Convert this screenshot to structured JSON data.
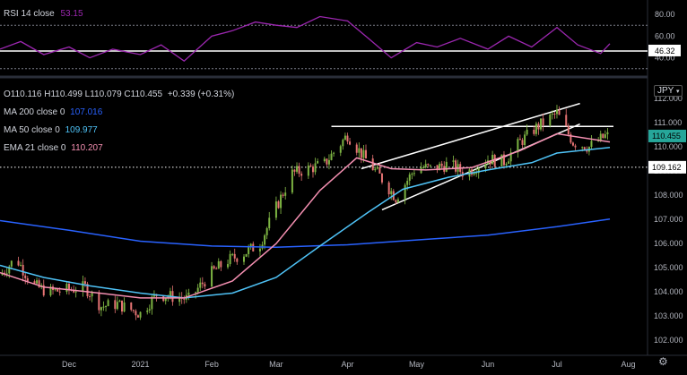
{
  "chart_data": [
    {
      "type": "line",
      "title": "RSI 14 close",
      "value": "53.15",
      "y_ticks": [
        "80.00",
        "60.00",
        "40.00"
      ],
      "ylim": [
        24,
        90
      ],
      "upper_band": 70,
      "lower_band": 30,
      "reference_line": 46.32,
      "reference_label": "46.32",
      "x_start": "2020-11-01",
      "x_end": "2021-07-24",
      "series": [
        {
          "x": [
            "2020-11-01",
            "2020-11-10",
            "2020-11-20",
            "2020-12-01",
            "2020-12-10",
            "2020-12-20",
            "2021-01-01",
            "2021-01-10",
            "2021-01-20",
            "2021-02-01",
            "2021-02-10",
            "2021-02-20",
            "2021-03-01",
            "2021-03-10",
            "2021-03-20",
            "2021-04-01",
            "2021-04-10",
            "2021-04-20",
            "2021-05-01",
            "2021-05-10",
            "2021-05-20",
            "2021-06-01",
            "2021-06-10",
            "2021-06-20",
            "2021-07-01",
            "2021-07-10",
            "2021-07-20",
            "2021-07-24"
          ],
          "y": [
            48,
            55,
            43,
            50,
            40,
            48,
            43,
            52,
            37,
            60,
            65,
            73,
            70,
            68,
            78,
            74,
            58,
            40,
            54,
            50,
            58,
            48,
            60,
            50,
            68,
            52,
            44,
            53
          ]
        }
      ]
    },
    {
      "type": "line",
      "x_ticks": [
        "Dec",
        "2021",
        "Feb",
        "Mar",
        "Apr",
        "May",
        "Jun",
        "Jul",
        "Aug"
      ],
      "y_ticks": [
        "112.000",
        "111.000",
        "110.000",
        "109.000",
        "108.000",
        "107.000",
        "106.000",
        "105.000",
        "104.000",
        "103.000",
        "102.000"
      ],
      "ylim": [
        101.45,
        112.75
      ],
      "currency": "JPY",
      "ohlc": {
        "o": "110.116",
        "h": "110.499",
        "l": "110.079",
        "c": "110.455",
        "change": "+0.339 (+0.31%)"
      },
      "indicators": [
        {
          "label": "MA 200 close 0",
          "value": "107.016",
          "color": "#2962ff"
        },
        {
          "label": "MA 50 close 0",
          "value": "109.977",
          "color": "#4fc3f7"
        },
        {
          "label": "EMA 21 close 0",
          "value": "110.207",
          "color": "#f48fb1"
        }
      ],
      "price_last": "110.455",
      "price_level": "109.162",
      "price_level_value": 109.162,
      "resistance": 110.85,
      "x_start": "2020-11-01",
      "x_end": "2021-07-24",
      "candles_close": [
        {
          "x": "2020-11-01",
          "y": 104.7
        },
        {
          "x": "2020-11-08",
          "y": 105.4
        },
        {
          "x": "2020-11-15",
          "y": 104.3
        },
        {
          "x": "2020-11-22",
          "y": 104.0
        },
        {
          "x": "2020-12-01",
          "y": 104.1
        },
        {
          "x": "2020-12-08",
          "y": 104.2
        },
        {
          "x": "2020-12-15",
          "y": 103.4
        },
        {
          "x": "2020-12-22",
          "y": 103.5
        },
        {
          "x": "2021-01-01",
          "y": 103.1
        },
        {
          "x": "2021-01-08",
          "y": 103.9
        },
        {
          "x": "2021-01-15",
          "y": 103.8
        },
        {
          "x": "2021-01-22",
          "y": 103.7
        },
        {
          "x": "2021-02-01",
          "y": 104.8
        },
        {
          "x": "2021-02-08",
          "y": 105.3
        },
        {
          "x": "2021-02-15",
          "y": 105.6
        },
        {
          "x": "2021-02-22",
          "y": 106.0
        },
        {
          "x": "2021-03-01",
          "y": 107.5
        },
        {
          "x": "2021-03-08",
          "y": 108.9
        },
        {
          "x": "2021-03-15",
          "y": 109.1
        },
        {
          "x": "2021-03-22",
          "y": 109.3
        },
        {
          "x": "2021-04-01",
          "y": 110.5
        },
        {
          "x": "2021-04-08",
          "y": 109.6
        },
        {
          "x": "2021-04-15",
          "y": 108.8
        },
        {
          "x": "2021-04-22",
          "y": 107.9
        },
        {
          "x": "2021-05-01",
          "y": 109.2
        },
        {
          "x": "2021-05-08",
          "y": 109.1
        },
        {
          "x": "2021-05-15",
          "y": 109.3
        },
        {
          "x": "2021-05-22",
          "y": 108.9
        },
        {
          "x": "2021-06-01",
          "y": 109.5
        },
        {
          "x": "2021-06-08",
          "y": 109.4
        },
        {
          "x": "2021-06-15",
          "y": 110.2
        },
        {
          "x": "2021-06-22",
          "y": 110.8
        },
        {
          "x": "2021-07-01",
          "y": 111.4
        },
        {
          "x": "2021-07-08",
          "y": 110.2
        },
        {
          "x": "2021-07-15",
          "y": 110.0
        },
        {
          "x": "2021-07-22",
          "y": 110.45
        }
      ],
      "series": [
        {
          "name": "MA 200 close 0",
          "x": [
            "2020-11-01",
            "2020-12-01",
            "2021-01-01",
            "2021-02-01",
            "2021-03-01",
            "2021-04-01",
            "2021-05-01",
            "2021-06-01",
            "2021-07-01",
            "2021-07-24"
          ],
          "y": [
            106.95,
            106.55,
            106.1,
            105.9,
            105.85,
            105.95,
            106.15,
            106.35,
            106.7,
            107.02
          ]
        },
        {
          "name": "MA 50 close 0",
          "x": [
            "2020-11-01",
            "2020-11-20",
            "2020-12-10",
            "2021-01-01",
            "2021-01-20",
            "2021-02-10",
            "2021-03-01",
            "2021-03-20",
            "2021-04-10",
            "2021-04-25",
            "2021-05-15",
            "2021-06-01",
            "2021-06-20",
            "2021-07-01",
            "2021-07-24"
          ],
          "y": [
            105.1,
            104.6,
            104.25,
            103.95,
            103.75,
            103.95,
            104.6,
            105.9,
            107.3,
            108.25,
            108.75,
            109.05,
            109.35,
            109.75,
            109.98
          ]
        },
        {
          "name": "EMA 21 close 0",
          "x": [
            "2020-11-01",
            "2020-11-20",
            "2020-12-10",
            "2021-01-01",
            "2021-01-20",
            "2021-02-10",
            "2021-03-01",
            "2021-03-20",
            "2021-04-05",
            "2021-04-20",
            "2021-05-05",
            "2021-05-25",
            "2021-06-15",
            "2021-07-01",
            "2021-07-24"
          ],
          "y": [
            104.8,
            104.2,
            104.0,
            103.75,
            103.75,
            104.45,
            106.0,
            108.2,
            109.55,
            109.1,
            109.05,
            109.15,
            109.85,
            110.55,
            110.21
          ]
        }
      ],
      "channel": [
        {
          "x": [
            "2021-04-16",
            "2021-07-11"
          ],
          "y": [
            107.4,
            110.95
          ]
        },
        {
          "x": [
            "2021-04-07",
            "2021-07-11"
          ],
          "y": [
            109.1,
            111.8
          ]
        }
      ]
    }
  ]
}
